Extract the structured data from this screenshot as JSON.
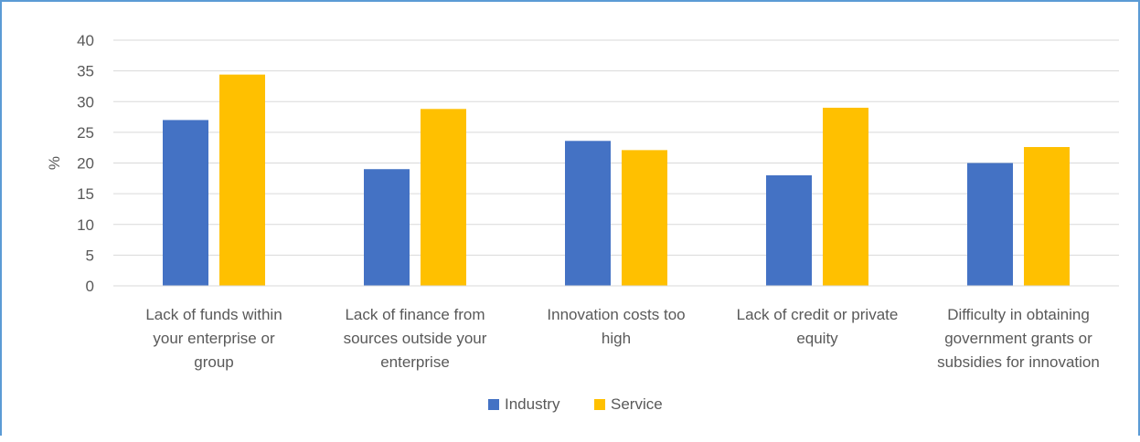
{
  "chart_data": {
    "type": "bar",
    "title": "",
    "xlabel": "",
    "ylabel": "%",
    "ylim": [
      0,
      40
    ],
    "yticks": [
      0,
      5,
      10,
      15,
      20,
      25,
      30,
      35,
      40
    ],
    "grid": true,
    "legend_position": "bottom",
    "categories": [
      [
        "Lack of funds within",
        "your enterprise or",
        "group"
      ],
      [
        "Lack of finance from",
        "sources outside your",
        "enterprise"
      ],
      [
        "Innovation costs too",
        "high"
      ],
      [
        "Lack of credit or private",
        "equity"
      ],
      [
        "Difficulty in obtaining",
        "government grants or",
        "subsidies for innovation"
      ]
    ],
    "series": [
      {
        "name": "Industry",
        "color": "#4472c4",
        "values": [
          27,
          19,
          23.6,
          18,
          20
        ]
      },
      {
        "name": "Service",
        "color": "#ffc000",
        "values": [
          34.4,
          28.8,
          22.1,
          29,
          22.6
        ]
      }
    ]
  }
}
